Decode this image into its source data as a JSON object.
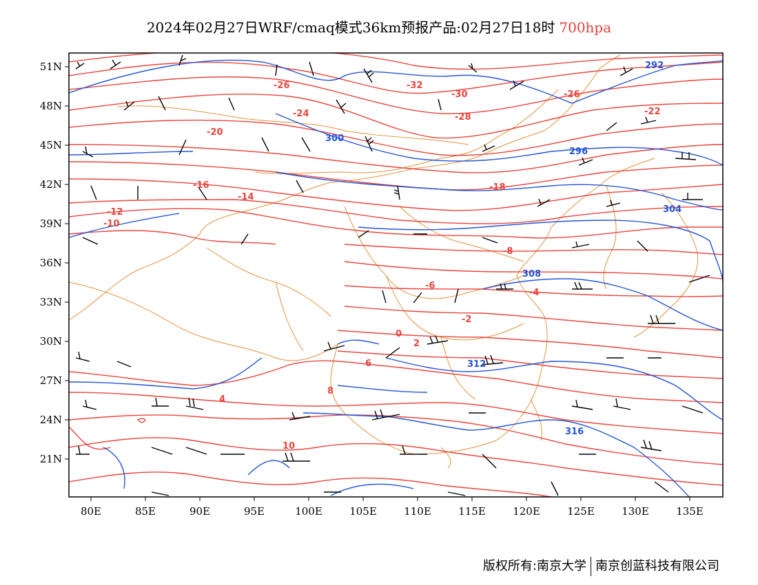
{
  "title": {
    "main": "2024年02月27日WRF/cmaq模式36km预报产品:02月27日18时",
    "level": "700hpa",
    "level_color": "#e0403a"
  },
  "axes": {
    "lat_labels": [
      "51N",
      "48N",
      "45N",
      "42N",
      "39N",
      "36N",
      "33N",
      "30N",
      "27N",
      "24N",
      "21N"
    ],
    "lon_labels": [
      "80E",
      "85E",
      "90E",
      "95E",
      "100E",
      "105E",
      "110E",
      "115E",
      "120E",
      "125E",
      "130E",
      "135E"
    ]
  },
  "colors": {
    "temperature": "#e8453c",
    "height": "#2455d6",
    "borders": "#e0923a",
    "wind": "#000000"
  },
  "temperature_labels": [
    "-32",
    "-30",
    "-28",
    "-26",
    "-26",
    "-24",
    "-22",
    "-20",
    "-18",
    "-16",
    "-14",
    "-12",
    "-10",
    "-8",
    "-6",
    "-4",
    "-2",
    "0",
    "2",
    "4",
    "6",
    "8",
    "10"
  ],
  "height_labels": [
    "292",
    "296",
    "300",
    "304",
    "308",
    "312",
    "316"
  ],
  "footer": {
    "left": "版权所有:南京大学",
    "right": "南京创蓝科技有限公司"
  }
}
